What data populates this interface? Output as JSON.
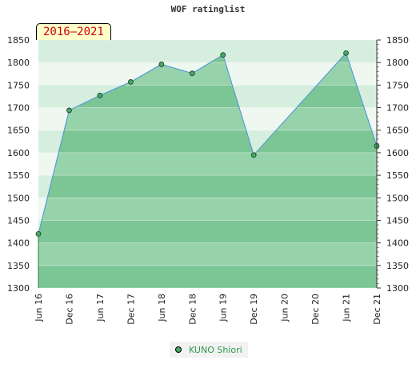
{
  "chart_data": {
    "type": "area",
    "title": "WOF ratinglist",
    "badge": "2016–2021",
    "x": [
      "Jun 16",
      "Dec 16",
      "Jun 17",
      "Dec 17",
      "Jun 18",
      "Dec 18",
      "Jun 19",
      "Dec 19",
      "Jun 20",
      "Dec 20",
      "Jun 21",
      "Dec 21"
    ],
    "series": [
      {
        "name": "KUNO Shiori",
        "values": [
          1420,
          1694,
          1727,
          1757,
          1796,
          1776,
          1817,
          1595,
          null,
          null,
          1821,
          1615
        ]
      }
    ],
    "ylim": [
      1300,
      1850
    ],
    "yticks": [
      1300,
      1350,
      1400,
      1450,
      1500,
      1550,
      1600,
      1650,
      1700,
      1750,
      1800,
      1850
    ],
    "y_axis_sides": "left and right",
    "grid": true,
    "legend_position": "bottom-center",
    "colors": {
      "fill": "#82c899",
      "line": "#5b9bd5",
      "marker": "#44a862",
      "legend_text": "#2e9a4d",
      "badge_text": "#cc0000"
    }
  }
}
